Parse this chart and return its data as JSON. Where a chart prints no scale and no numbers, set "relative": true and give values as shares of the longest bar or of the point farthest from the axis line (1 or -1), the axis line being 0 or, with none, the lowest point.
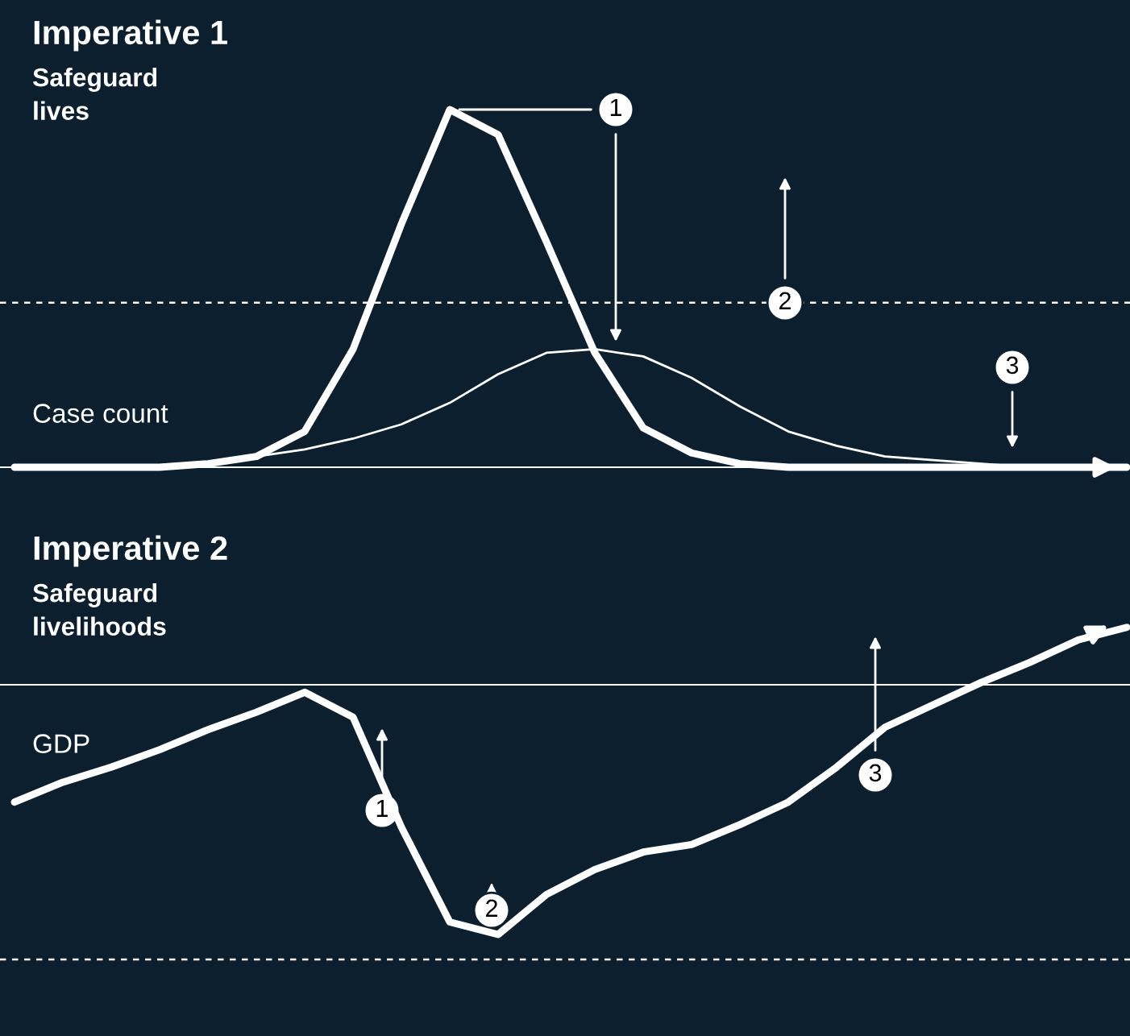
{
  "chart_data": [
    {
      "type": "line",
      "title": "Imperative 1",
      "subtitle": "Safeguard\nlives",
      "ylabel": "Case count",
      "relative": true,
      "categories": [
        null,
        null,
        null,
        null,
        null,
        null,
        null,
        null,
        null,
        null,
        null,
        null,
        null,
        null,
        null,
        null,
        null,
        null,
        null,
        null,
        null,
        null,
        null,
        null
      ],
      "series": [
        {
          "color": "#ffffff",
          "values": [
            0,
            0,
            0,
            0,
            0.01,
            0.03,
            0.1,
            0.33,
            0.68,
            1.0,
            0.93,
            0.63,
            0.32,
            0.11,
            0.04,
            0.01,
            0,
            0,
            0,
            0,
            0,
            0,
            0,
            0
          ]
        },
        {
          "color": "#ffffff",
          "values": [
            0,
            0,
            0,
            0,
            0.01,
            0.03,
            0.05,
            0.08,
            0.12,
            0.18,
            0.26,
            0.32,
            0.33,
            0.31,
            0.25,
            0.17,
            0.1,
            0.06,
            0.03,
            0.02,
            0.01,
            0,
            0,
            0
          ]
        }
      ],
      "ref_lines": [
        {
          "axis": "y",
          "value": 0.46,
          "color": "#ffffff",
          "line_style": "dashed"
        }
      ],
      "annotations": [
        "1",
        "2",
        "3"
      ]
    },
    {
      "type": "line",
      "title": "Imperative 2",
      "subtitle": "Safeguard\nlivelihoods",
      "ylabel": "GDP",
      "relative": true,
      "categories": [
        null,
        null,
        null,
        null,
        null,
        null,
        null,
        null,
        null,
        null,
        null,
        null,
        null,
        null,
        null,
        null,
        null,
        null,
        null,
        null,
        null,
        null,
        null,
        null
      ],
      "series": [
        {
          "color": "#ffffff",
          "values": [
            -0.47,
            -0.39,
            -0.33,
            -0.26,
            -0.18,
            -0.11,
            -0.03,
            -0.13,
            -0.57,
            -0.95,
            -1,
            -0.84,
            -0.74,
            -0.67,
            -0.64,
            -0.56,
            -0.47,
            -0.33,
            -0.17,
            -0.08,
            0.01,
            0.09,
            0.18,
            0.23
          ]
        }
      ],
      "ref_lines": [
        {
          "axis": "y",
          "value": -1.1,
          "color": "#ffffff",
          "line_style": "dashed"
        }
      ],
      "annotations": [
        "1",
        "2",
        "3"
      ]
    }
  ]
}
